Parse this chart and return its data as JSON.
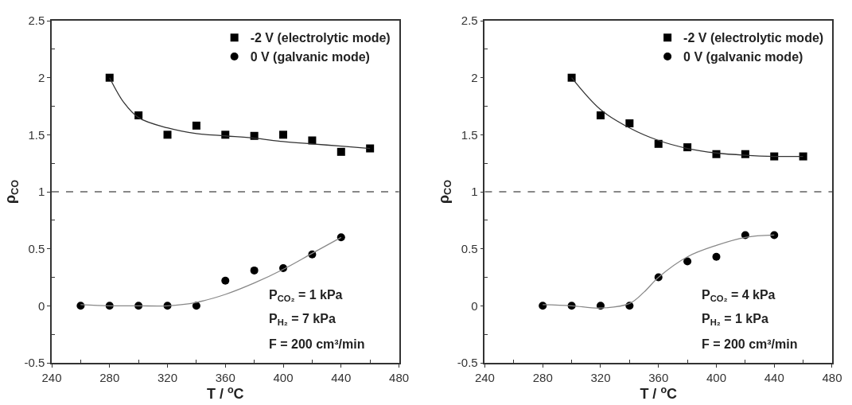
{
  "chart_data": [
    {
      "type": "scatter",
      "xlabel": "T / $^{o}$C",
      "ylabel": "ρ$_{CO}$",
      "xlim": [
        240,
        480
      ],
      "xticks": [
        240,
        280,
        320,
        360,
        400,
        440,
        480
      ],
      "ylim": [
        -0.5,
        2.5
      ],
      "yticks": [
        -0.5,
        0,
        0.5,
        1,
        1.5,
        2,
        2.5
      ],
      "grid": false,
      "legend": "top right",
      "series": [
        {
          "name": "-2 V (electrolytic mode)",
          "marker": "square",
          "color": "#000000",
          "x": [
            280,
            300,
            320,
            340,
            360,
            380,
            400,
            420,
            440,
            460
          ],
          "values": [
            2.0,
            1.67,
            1.5,
            1.58,
            1.5,
            1.49,
            1.5,
            1.45,
            1.35,
            1.38
          ]
        },
        {
          "name": "0 V (galvanic mode)",
          "marker": "circle",
          "color": "#000000",
          "x": [
            260,
            280,
            300,
            320,
            340,
            360,
            380,
            400,
            420,
            440
          ],
          "values": [
            0,
            0,
            0,
            0,
            0,
            0.22,
            0.31,
            0.33,
            0.45,
            0.6
          ]
        },
        {
          "type": "line",
          "marker": "none",
          "color": "#333333",
          "x": [
            280,
            290,
            300,
            320,
            340,
            360,
            380,
            400,
            420,
            440,
            460
          ],
          "values": [
            2.0,
            1.78,
            1.65,
            1.56,
            1.51,
            1.49,
            1.47,
            1.44,
            1.42,
            1.4,
            1.38
          ]
        },
        {
          "type": "line",
          "marker": "none",
          "color": "#888888",
          "x": [
            260,
            280,
            300,
            320,
            340,
            360,
            380,
            400,
            420,
            440
          ],
          "values": [
            0.01,
            0.0,
            0.0,
            0.0,
            0.03,
            0.1,
            0.2,
            0.32,
            0.46,
            0.6
          ]
        }
      ],
      "ref_lines": [
        {
          "axis": "y",
          "value": 1,
          "color": "#888888",
          "line_style": "dashed"
        }
      ],
      "annotations": [
        "P$_{CO₂}$ = 1 kPa",
        "P$_{H₂}$ = 7 kPa",
        "F = 200 cm³/min"
      ]
    },
    {
      "type": "scatter",
      "xlabel": "T / $^{o}$C",
      "ylabel": "ρ$_{CO}$",
      "xlim": [
        240,
        480
      ],
      "xticks": [
        240,
        280,
        320,
        360,
        400,
        440,
        480
      ],
      "ylim": [
        -0.5,
        2.5
      ],
      "yticks": [
        -0.5,
        0,
        0.5,
        1,
        1.5,
        2,
        2.5
      ],
      "grid": false,
      "legend": "top right",
      "series": [
        {
          "name": "-2 V (electrolytic mode)",
          "marker": "square",
          "color": "#000000",
          "x": [
            300,
            320,
            340,
            360,
            380,
            400,
            420,
            440,
            460
          ],
          "values": [
            2.0,
            1.67,
            1.6,
            1.42,
            1.39,
            1.33,
            1.33,
            1.31,
            1.31
          ]
        },
        {
          "name": "0 V (galvanic mode)",
          "marker": "circle",
          "color": "#000000",
          "x": [
            280,
            300,
            320,
            340,
            360,
            380,
            400,
            420,
            440
          ],
          "values": [
            0,
            0,
            0,
            0,
            0.25,
            0.39,
            0.43,
            0.62,
            0.62
          ]
        },
        {
          "type": "line",
          "marker": "none",
          "color": "#333333",
          "x": [
            300,
            320,
            340,
            360,
            380,
            400,
            420,
            440,
            460
          ],
          "values": [
            2.0,
            1.72,
            1.56,
            1.45,
            1.38,
            1.34,
            1.32,
            1.31,
            1.31
          ]
        },
        {
          "type": "line",
          "marker": "none",
          "color": "#888888",
          "x": [
            280,
            300,
            320,
            340,
            350,
            360,
            380,
            400,
            420,
            440
          ],
          "values": [
            0.01,
            0.0,
            -0.02,
            0.02,
            0.12,
            0.25,
            0.43,
            0.53,
            0.6,
            0.62
          ]
        }
      ],
      "ref_lines": [
        {
          "axis": "y",
          "value": 1,
          "color": "#888888",
          "line_style": "dashed"
        }
      ],
      "annotations": [
        "P$_{CO₂}$ = 4 kPa",
        "P$_{H₂}$ = 1 kPa",
        "F = 200 cm³/min"
      ]
    }
  ]
}
